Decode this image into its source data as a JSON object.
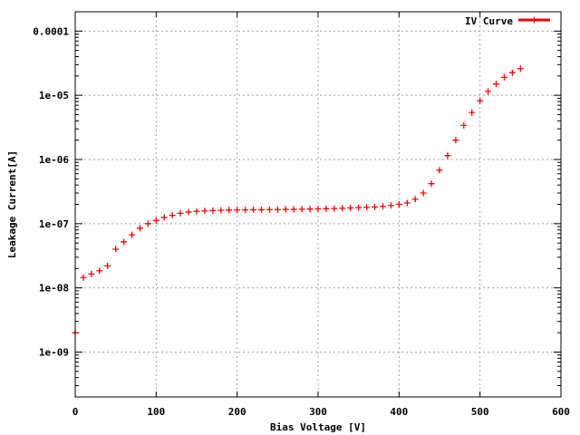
{
  "chart_data": {
    "type": "scatter",
    "xlabel": "Bias Voltage [V]",
    "ylabel": "Leakage Current[A]",
    "x_ticks": [
      "0",
      "100",
      "200",
      "300",
      "400",
      "500",
      "600"
    ],
    "y_ticks": [
      {
        "label": "1e-09",
        "value": 1e-09
      },
      {
        "label": "1e-08",
        "value": 1e-08
      },
      {
        "label": "1e-07",
        "value": 1e-07
      },
      {
        "label": "1e-06",
        "value": 1e-06
      },
      {
        "label": "1e-05",
        "value": 1e-05
      },
      {
        "label": "0.0001",
        "value": 0.0001
      }
    ],
    "xlim": [
      0,
      600
    ],
    "ylim": [
      2e-10,
      0.0002
    ],
    "y_scale": "log",
    "grid": true,
    "legend_position": "top-right",
    "series": [
      {
        "name": "IV Curve",
        "color": "#ff0000",
        "marker": "plus",
        "points": [
          [
            0,
            2e-09
          ],
          [
            10,
            1.45e-08
          ],
          [
            20,
            1.65e-08
          ],
          [
            30,
            1.85e-08
          ],
          [
            40,
            2.2e-08
          ],
          [
            50,
            4e-08
          ],
          [
            60,
            5.2e-08
          ],
          [
            70,
            6.7e-08
          ],
          [
            80,
            8.5e-08
          ],
          [
            90,
            1e-07
          ],
          [
            100,
            1.12e-07
          ],
          [
            110,
            1.25e-07
          ],
          [
            120,
            1.35e-07
          ],
          [
            130,
            1.45e-07
          ],
          [
            140,
            1.52e-07
          ],
          [
            150,
            1.56e-07
          ],
          [
            160,
            1.58e-07
          ],
          [
            170,
            1.6e-07
          ],
          [
            180,
            1.62e-07
          ],
          [
            190,
            1.63e-07
          ],
          [
            200,
            1.64e-07
          ],
          [
            210,
            1.64e-07
          ],
          [
            220,
            1.65e-07
          ],
          [
            230,
            1.65e-07
          ],
          [
            240,
            1.66e-07
          ],
          [
            250,
            1.66e-07
          ],
          [
            260,
            1.67e-07
          ],
          [
            270,
            1.67e-07
          ],
          [
            280,
            1.68e-07
          ],
          [
            290,
            1.69e-07
          ],
          [
            300,
            1.7e-07
          ],
          [
            310,
            1.71e-07
          ],
          [
            320,
            1.72e-07
          ],
          [
            330,
            1.74e-07
          ],
          [
            340,
            1.76e-07
          ],
          [
            350,
            1.78e-07
          ],
          [
            360,
            1.8e-07
          ],
          [
            370,
            1.82e-07
          ],
          [
            380,
            1.86e-07
          ],
          [
            390,
            1.92e-07
          ],
          [
            400,
            2e-07
          ],
          [
            410,
            2.1e-07
          ],
          [
            420,
            2.4e-07
          ],
          [
            430,
            3e-07
          ],
          [
            440,
            4.2e-07
          ],
          [
            450,
            6.8e-07
          ],
          [
            460,
            1.15e-06
          ],
          [
            470,
            2e-06
          ],
          [
            480,
            3.4e-06
          ],
          [
            490,
            5.4e-06
          ],
          [
            500,
            8.2e-06
          ],
          [
            510,
            1.15e-05
          ],
          [
            520,
            1.5e-05
          ],
          [
            530,
            1.9e-05
          ],
          [
            540,
            2.25e-05
          ],
          [
            550,
            2.6e-05
          ]
        ]
      }
    ]
  }
}
